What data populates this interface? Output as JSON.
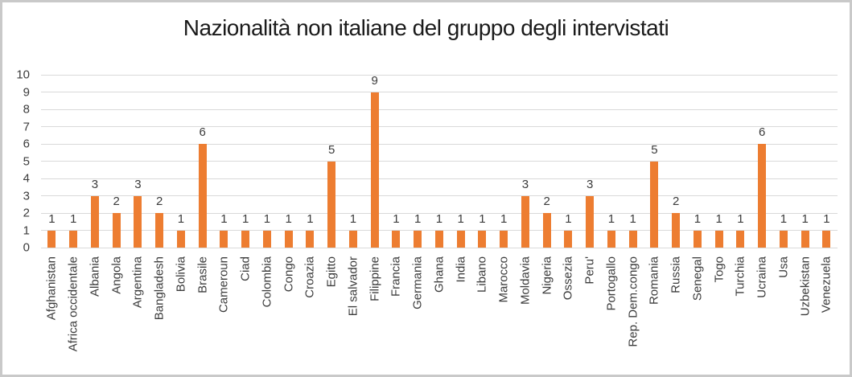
{
  "chart_data": {
    "type": "bar",
    "title": "Nazionalità non italiane del gruppo degli intervistati",
    "categories": [
      "Afghanistan",
      "Africa occidentale",
      "Albania",
      "Angola",
      "Argentina",
      "Bangladesh",
      "Bolivia",
      "Brasile",
      "Cameroun",
      "Ciad",
      "Colombia",
      "Congo",
      "Croazia",
      "Egitto",
      "El salvador",
      "Filippine",
      "Francia",
      "Germania",
      "Ghana",
      "India",
      "Libano",
      "Marocco",
      "Moldavia",
      "Nigeria",
      "Ossezia",
      "Peru'",
      "Portogallo",
      "Rep. Dem.congo",
      "Romania",
      "Russia",
      "Senegal",
      "Togo",
      "Turchia",
      "Ucraina",
      "Usa",
      "Uzbekistan",
      "Venezuela"
    ],
    "values": [
      1,
      1,
      3,
      2,
      3,
      2,
      1,
      6,
      1,
      1,
      1,
      1,
      1,
      5,
      1,
      9,
      1,
      1,
      1,
      1,
      1,
      1,
      3,
      2,
      1,
      3,
      1,
      1,
      5,
      2,
      1,
      1,
      1,
      6,
      1,
      1,
      1
    ],
    "xlabel": "",
    "ylabel": "",
    "ylim": [
      0,
      10
    ],
    "ytick_step": 1,
    "grid": true,
    "data_labels": true,
    "legend": "none"
  },
  "colors": {
    "bar": "#ED7D31",
    "grid": "#D9D9D9",
    "text": "#3B3B3B",
    "border": "#C9C9C9",
    "background": "#FFFFFF"
  }
}
